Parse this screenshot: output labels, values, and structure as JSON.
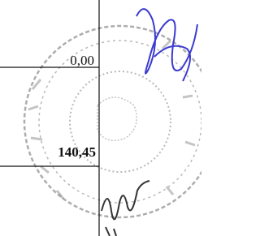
{
  "cells": [
    "0,00",
    "140,45"
  ]
}
